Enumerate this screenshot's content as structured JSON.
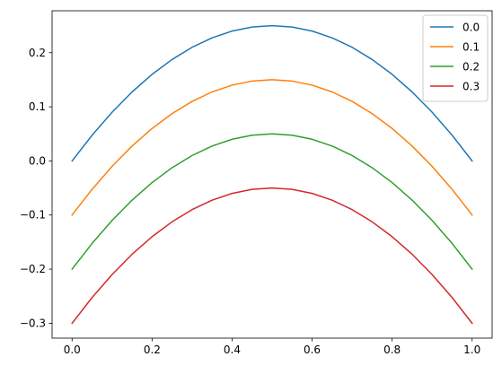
{
  "chart_data": {
    "type": "line",
    "title": "",
    "xlabel": "",
    "ylabel": "",
    "xlim": [
      -0.05,
      1.05
    ],
    "ylim": [
      -0.3275,
      0.2775
    ],
    "x_ticks": [
      0.0,
      0.2,
      0.4,
      0.6,
      0.8,
      1.0
    ],
    "x_tick_labels": [
      "0.0",
      "0.2",
      "0.4",
      "0.6",
      "0.8",
      "1.0"
    ],
    "y_ticks": [
      -0.3,
      -0.2,
      -0.1,
      0.0,
      0.1,
      0.2
    ],
    "y_tick_labels": [
      "−0.3",
      "−0.2",
      "−0.1",
      "0.0",
      "0.1",
      "0.2"
    ],
    "grid": false,
    "legend_position": "top-right",
    "x": [
      0.0,
      0.05,
      0.1,
      0.15,
      0.2,
      0.25,
      0.3,
      0.35,
      0.4,
      0.45,
      0.5,
      0.55,
      0.6,
      0.65,
      0.7,
      0.75,
      0.8,
      0.85,
      0.9,
      0.95,
      1.0
    ],
    "series": [
      {
        "name": "0.0",
        "color": "#1f77b4",
        "values": [
          0.0,
          0.0475,
          0.09,
          0.1275,
          0.16,
          0.1875,
          0.21,
          0.2275,
          0.24,
          0.2475,
          0.25,
          0.2475,
          0.24,
          0.2275,
          0.21,
          0.1875,
          0.16,
          0.1275,
          0.09,
          0.0475,
          0.0
        ]
      },
      {
        "name": "0.1",
        "color": "#ff7f0e",
        "values": [
          -0.1,
          -0.0525,
          -0.01,
          0.0275,
          0.06,
          0.0875,
          0.11,
          0.1275,
          0.14,
          0.1475,
          0.15,
          0.1475,
          0.14,
          0.1275,
          0.11,
          0.0875,
          0.06,
          0.0275,
          -0.01,
          -0.0525,
          -0.1
        ]
      },
      {
        "name": "0.2",
        "color": "#2ca02c",
        "values": [
          -0.2,
          -0.1525,
          -0.11,
          -0.0725,
          -0.04,
          -0.0125,
          0.01,
          0.0275,
          0.04,
          0.0475,
          0.05,
          0.0475,
          0.04,
          0.0275,
          0.01,
          -0.0125,
          -0.04,
          -0.0725,
          -0.11,
          -0.1525,
          -0.2
        ]
      },
      {
        "name": "0.3",
        "color": "#d62728",
        "values": [
          -0.3,
          -0.2525,
          -0.21,
          -0.1725,
          -0.14,
          -0.1125,
          -0.09,
          -0.0725,
          -0.06,
          -0.0525,
          -0.05,
          -0.0525,
          -0.06,
          -0.0725,
          -0.09,
          -0.1125,
          -0.14,
          -0.1725,
          -0.21,
          -0.2525,
          -0.3
        ]
      }
    ]
  }
}
